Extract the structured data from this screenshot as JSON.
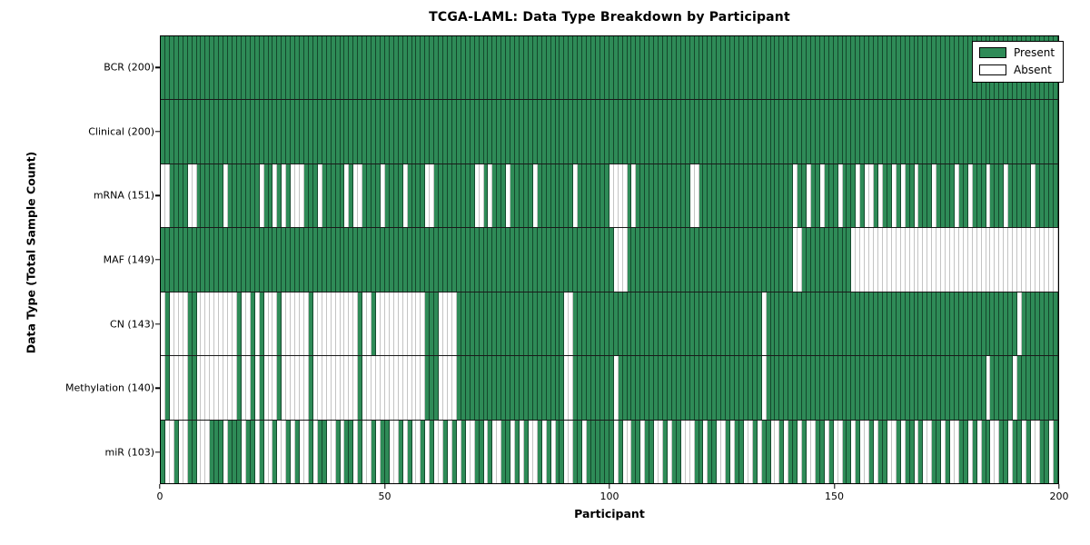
{
  "chart_data": {
    "type": "heatmap",
    "title": "TCGA-LAML: Data Type Breakdown by Participant",
    "xlabel": "Participant",
    "ylabel": "Data Type (Total Sample Count)",
    "n_participants": 200,
    "x_range": [
      0,
      200
    ],
    "x_ticks": [
      0,
      50,
      100,
      150,
      200
    ],
    "grid": false,
    "legend": {
      "position": "upper right",
      "present_label": "Present",
      "absent_label": "Absent"
    },
    "colors": {
      "present_fill": "#2e8b57",
      "present_edge": "#14482c",
      "absent_fill": "#ffffff",
      "absent_edge": "#c4c4c4",
      "row_divider": "#1a1a1a",
      "axis": "#000000"
    },
    "rows": [
      {
        "data_type": "BCR",
        "label": "BCR (200)",
        "present_count": 200,
        "absent_participants": []
      },
      {
        "data_type": "Clinical",
        "label": "Clinical (200)",
        "present_count": 200,
        "absent_participants": []
      },
      {
        "data_type": "mRNA",
        "label": "mRNA (151)",
        "present_count": 151,
        "absent_participants": [
          0,
          1,
          6,
          7,
          14,
          22,
          25,
          27,
          29,
          30,
          31,
          35,
          41,
          43,
          44,
          49,
          54,
          59,
          60,
          70,
          71,
          73,
          77,
          83,
          92,
          100,
          101,
          102,
          103,
          105,
          118,
          119,
          141,
          144,
          147,
          151,
          155,
          157,
          158,
          160,
          163,
          165,
          168,
          172,
          177,
          180,
          184,
          188,
          194
        ]
      },
      {
        "data_type": "MAF",
        "label": "MAF (149)",
        "present_count": 149,
        "absent_participants": [
          101,
          102,
          103,
          141,
          142,
          154,
          155,
          156,
          157,
          158,
          159,
          160,
          161,
          162,
          163,
          164,
          165,
          166,
          167,
          168,
          169,
          170,
          171,
          172,
          173,
          174,
          175,
          176,
          177,
          178,
          179,
          180,
          181,
          182,
          183,
          184,
          185,
          186,
          187,
          188,
          189,
          190,
          191,
          192,
          193,
          194,
          195,
          196,
          197,
          198,
          199
        ]
      },
      {
        "data_type": "CN",
        "label": "CN (143)",
        "present_count": 143,
        "absent_participants": [
          0,
          2,
          3,
          4,
          5,
          8,
          9,
          10,
          11,
          12,
          13,
          14,
          15,
          16,
          18,
          19,
          21,
          23,
          24,
          25,
          27,
          28,
          29,
          30,
          31,
          32,
          34,
          35,
          36,
          37,
          38,
          39,
          40,
          41,
          42,
          43,
          45,
          46,
          48,
          49,
          50,
          51,
          52,
          53,
          54,
          55,
          56,
          57,
          58,
          62,
          63,
          64,
          65,
          90,
          91,
          134,
          191
        ]
      },
      {
        "data_type": "Methylation",
        "label": "Methylation (140)",
        "present_count": 140,
        "absent_participants": [
          0,
          2,
          3,
          4,
          5,
          8,
          9,
          10,
          11,
          12,
          13,
          14,
          15,
          16,
          18,
          19,
          21,
          23,
          24,
          25,
          27,
          28,
          29,
          30,
          31,
          32,
          34,
          35,
          36,
          37,
          38,
          39,
          40,
          41,
          42,
          43,
          45,
          46,
          47,
          48,
          49,
          50,
          51,
          52,
          53,
          54,
          55,
          56,
          57,
          58,
          62,
          63,
          64,
          65,
          90,
          91,
          101,
          134,
          184,
          190
        ]
      },
      {
        "data_type": "miR",
        "label": "miR (103)",
        "present_count": 103,
        "absent_participants": [
          1,
          2,
          4,
          5,
          8,
          9,
          10,
          14,
          18,
          21,
          23,
          24,
          26,
          27,
          29,
          31,
          32,
          34,
          37,
          38,
          40,
          43,
          45,
          46,
          48,
          51,
          52,
          54,
          56,
          57,
          59,
          61,
          62,
          64,
          66,
          68,
          69,
          72,
          74,
          75,
          78,
          80,
          82,
          83,
          85,
          87,
          90,
          91,
          94,
          101,
          103,
          104,
          107,
          110,
          111,
          113,
          116,
          117,
          118,
          121,
          124,
          125,
          127,
          130,
          131,
          133,
          136,
          137,
          139,
          142,
          144,
          145,
          148,
          150,
          151,
          154,
          156,
          157,
          159,
          162,
          163,
          165,
          168,
          170,
          171,
          174,
          176,
          177,
          180,
          182,
          185,
          186,
          189,
          192,
          194,
          195,
          198
        ]
      }
    ]
  }
}
